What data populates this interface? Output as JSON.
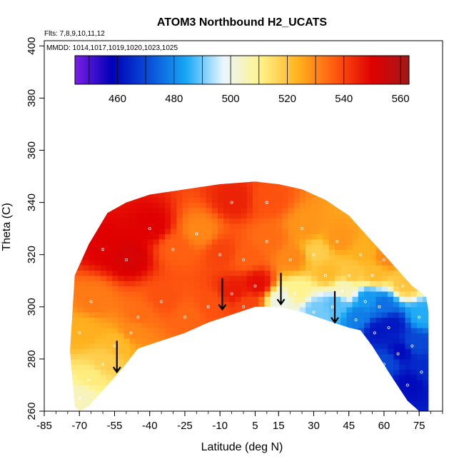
{
  "chart_data": {
    "type": "heatmap",
    "title": "ATOM3 Northbound H2_UCATS",
    "subtitle_flights": "Flts: 7,8,9,10,11,12",
    "subtitle_dates": "MMDD: 1014,1017,1019,1020,1023,1025",
    "xlabel": "Latitude (deg N)",
    "ylabel": "Theta (C)",
    "xlim": [
      -85,
      85
    ],
    "ylim": [
      260,
      402
    ],
    "x_ticks": [
      -85,
      -70,
      -55,
      -40,
      -25,
      -10,
      5,
      15,
      30,
      45,
      60,
      75
    ],
    "y_ticks": [
      260,
      280,
      300,
      320,
      340,
      360,
      380,
      400
    ],
    "colorbar": {
      "range": [
        445,
        563
      ],
      "ticks": [
        460,
        480,
        500,
        520,
        540,
        560
      ],
      "colors": [
        "#7a1fe6",
        "#0000b8",
        "#0a4fd8",
        "#18a8f5",
        "#eaf6ff",
        "#fff38a",
        "#ffb21e",
        "#ff5a10",
        "#e00000",
        "#a01818"
      ]
    },
    "boundary_upper": [
      [
        -72,
        312
      ],
      [
        -66,
        324
      ],
      [
        -58,
        336
      ],
      [
        -50,
        340
      ],
      [
        -40,
        343
      ],
      [
        -25,
        345
      ],
      [
        -10,
        347
      ],
      [
        5,
        348
      ],
      [
        15,
        347
      ],
      [
        25,
        345
      ],
      [
        35,
        341
      ],
      [
        45,
        335
      ],
      [
        55,
        325
      ],
      [
        65,
        315
      ],
      [
        72,
        308
      ],
      [
        78,
        304
      ],
      [
        79,
        298
      ]
    ],
    "boundary_lower": [
      [
        79,
        260
      ],
      [
        75,
        260
      ],
      [
        70,
        264
      ],
      [
        62,
        275
      ],
      [
        55,
        285
      ],
      [
        50,
        291
      ],
      [
        45,
        292
      ],
      [
        35,
        295
      ],
      [
        25,
        298
      ],
      [
        15,
        300
      ],
      [
        5,
        300
      ],
      [
        -5,
        297
      ],
      [
        -15,
        294
      ],
      [
        -25,
        290
      ],
      [
        -35,
        287
      ],
      [
        -45,
        284
      ],
      [
        -52,
        276
      ],
      [
        -60,
        268
      ],
      [
        -66,
        262
      ],
      [
        -70,
        260
      ],
      [
        -72,
        262
      ],
      [
        -74,
        283
      ]
    ],
    "field_samples": [
      {
        "lat": -70,
        "theta": 265,
        "value": 505
      },
      {
        "lat": -66,
        "theta": 272,
        "value": 512
      },
      {
        "lat": -60,
        "theta": 278,
        "value": 518
      },
      {
        "lat": -55,
        "theta": 285,
        "value": 522
      },
      {
        "lat": -70,
        "theta": 290,
        "value": 524
      },
      {
        "lat": -48,
        "theta": 290,
        "value": 530
      },
      {
        "lat": -45,
        "theta": 296,
        "value": 534
      },
      {
        "lat": -65,
        "theta": 302,
        "value": 532
      },
      {
        "lat": -35,
        "theta": 302,
        "value": 538
      },
      {
        "lat": -25,
        "theta": 296,
        "value": 535
      },
      {
        "lat": -15,
        "theta": 300,
        "value": 538
      },
      {
        "lat": -5,
        "theta": 305,
        "value": 546
      },
      {
        "lat": 0,
        "theta": 300,
        "value": 540
      },
      {
        "lat": 5,
        "theta": 308,
        "value": 548
      },
      {
        "lat": -50,
        "theta": 318,
        "value": 552
      },
      {
        "lat": -60,
        "theta": 322,
        "value": 550
      },
      {
        "lat": -40,
        "theta": 330,
        "value": 550
      },
      {
        "lat": -30,
        "theta": 322,
        "value": 536
      },
      {
        "lat": -20,
        "theta": 328,
        "value": 530
      },
      {
        "lat": -10,
        "theta": 320,
        "value": 540
      },
      {
        "lat": -5,
        "theta": 340,
        "value": 545
      },
      {
        "lat": 0,
        "theta": 318,
        "value": 536
      },
      {
        "lat": 10,
        "theta": 325,
        "value": 534
      },
      {
        "lat": 10,
        "theta": 340,
        "value": 538
      },
      {
        "lat": 20,
        "theta": 318,
        "value": 530
      },
      {
        "lat": 25,
        "theta": 330,
        "value": 528
      },
      {
        "lat": 30,
        "theta": 320,
        "value": 518
      },
      {
        "lat": 35,
        "theta": 312,
        "value": 522
      },
      {
        "lat": 40,
        "theta": 325,
        "value": 528
      },
      {
        "lat": 45,
        "theta": 312,
        "value": 520
      },
      {
        "lat": 50,
        "theta": 320,
        "value": 524
      },
      {
        "lat": 55,
        "theta": 312,
        "value": 522
      },
      {
        "lat": 60,
        "theta": 318,
        "value": 530
      },
      {
        "lat": 68,
        "theta": 308,
        "value": 520
      },
      {
        "lat": 15,
        "theta": 302,
        "value": 500
      },
      {
        "lat": 22,
        "theta": 305,
        "value": 510
      },
      {
        "lat": 30,
        "theta": 298,
        "value": 490
      },
      {
        "lat": 38,
        "theta": 300,
        "value": 488
      },
      {
        "lat": 42,
        "theta": 306,
        "value": 505
      },
      {
        "lat": 48,
        "theta": 295,
        "value": 478
      },
      {
        "lat": 52,
        "theta": 302,
        "value": 482
      },
      {
        "lat": 58,
        "theta": 300,
        "value": 476
      },
      {
        "lat": 56,
        "theta": 290,
        "value": 462
      },
      {
        "lat": 62,
        "theta": 292,
        "value": 462
      },
      {
        "lat": 66,
        "theta": 282,
        "value": 460
      },
      {
        "lat": 72,
        "theta": 285,
        "value": 470
      },
      {
        "lat": 75,
        "theta": 296,
        "value": 485
      },
      {
        "lat": 76,
        "theta": 275,
        "value": 465
      },
      {
        "lat": 70,
        "theta": 270,
        "value": 460
      },
      {
        "lat": 60,
        "theta": 278,
        "value": 470
      }
    ],
    "arrows": [
      {
        "lat": -54,
        "theta": 281
      },
      {
        "lat": -9,
        "theta": 305
      },
      {
        "lat": 16,
        "theta": 307
      },
      {
        "lat": 39,
        "theta": 300
      }
    ]
  }
}
